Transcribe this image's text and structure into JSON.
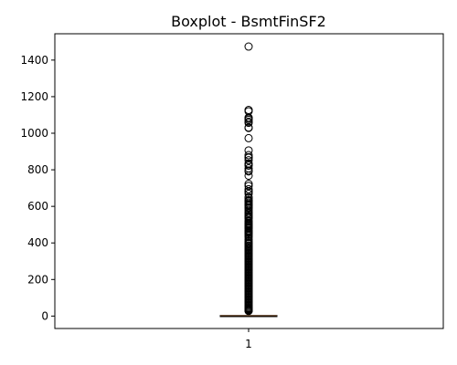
{
  "chart_data": {
    "type": "boxplot",
    "title": "Boxplot - BsmtFinSF2",
    "xlabel": "",
    "ylabel": "",
    "categories": [
      "1"
    ],
    "ylim": [
      -68,
      1544
    ],
    "yticks": [
      0,
      200,
      400,
      600,
      800,
      1000,
      1200,
      1400
    ],
    "ytick_labels": [
      "0",
      "200",
      "400",
      "600",
      "800",
      "1000",
      "1200",
      "1400"
    ],
    "box": {
      "min": 0,
      "q1": 0,
      "median": 0,
      "q3": 0,
      "max": 0
    },
    "outliers": [
      1474,
      1127,
      1120,
      1085,
      1080,
      1073,
      1063,
      1057,
      1031,
      1029,
      973,
      906,
      880,
      869,
      866,
      852,
      834,
      830,
      823,
      808,
      796,
      791,
      768,
      723,
      712,
      694,
      682,
      680,
      669,
      651,
      645,
      634,
      630,
      627,
      620,
      612,
      608,
      604,
      596,
      590,
      580,
      571,
      563,
      555,
      547,
      544,
      539,
      532,
      521,
      516,
      509,
      504,
      500,
      495,
      491,
      486,
      482,
      479,
      469,
      465,
      461,
      456,
      453,
      446,
      439,
      432,
      420,
      410,
      402,
      397,
      393,
      385,
      380,
      374,
      368,
      362,
      356,
      350,
      344,
      338,
      332,
      326,
      320,
      314,
      308,
      302,
      296,
      290,
      284,
      278,
      272,
      266,
      260,
      254,
      248,
      242,
      236,
      230,
      224,
      218,
      212,
      206,
      200,
      194,
      188,
      182,
      176,
      170,
      164,
      158,
      152,
      146,
      140,
      134,
      128,
      122,
      116,
      110,
      104,
      98,
      92,
      86,
      80,
      74,
      68,
      62,
      56,
      50,
      44,
      41,
      38,
      35,
      32,
      30,
      28
    ],
    "grid": false,
    "legend": "none",
    "colors": {
      "median": "#ff7f0e",
      "box": "#000000",
      "outlier": "#000000",
      "frame": "#000000",
      "background": "#ffffff"
    }
  }
}
